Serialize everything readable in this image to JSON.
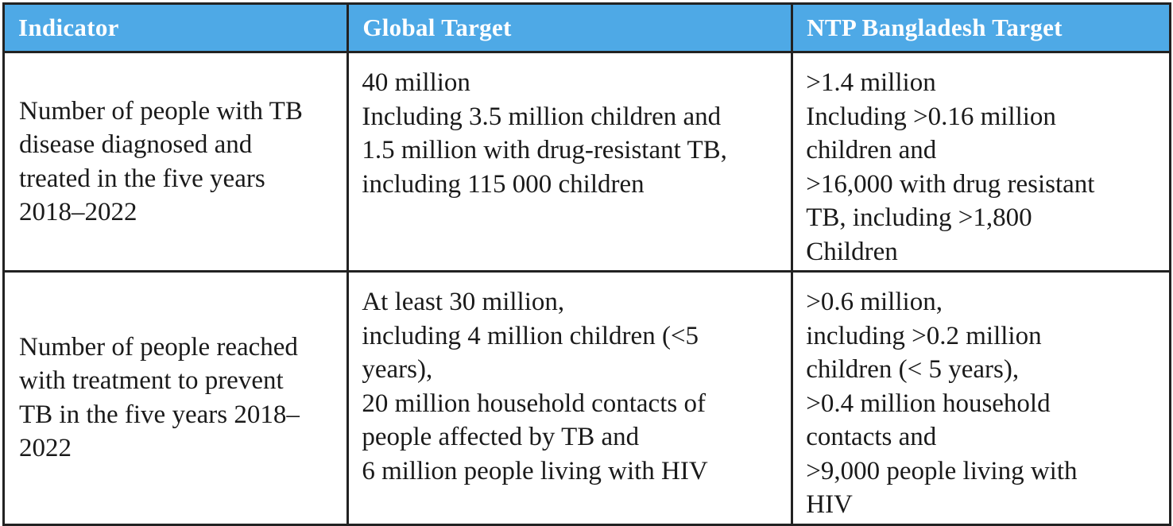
{
  "table": {
    "header_color": "#4EA9E6",
    "headers": [
      "Indicator",
      "Global Target",
      "NTP Bangladesh Target"
    ],
    "rows": [
      {
        "indicator": [
          "Number of people with TB",
          "disease diagnosed and",
          "treated in the five years",
          "2018–2022"
        ],
        "global": [
          "40 million",
          "Including 3.5 million children and",
          "1.5 million with drug-resistant TB,",
          "including 115 000 children"
        ],
        "ntp": [
          ">1.4 million",
          "Including >0.16 million",
          "children and",
          ">16,000 with drug resistant",
          "TB, including >1,800",
          "Children"
        ]
      },
      {
        "indicator": [
          "Number of people reached",
          "with treatment to prevent",
          "TB in the five years 2018–",
          "2022"
        ],
        "global": [
          "At least 30 million,",
          "including 4 million children (<5",
          "years),",
          "20 million household contacts of",
          "people affected by TB and",
          "6 million people living with HIV"
        ],
        "ntp": [
          ">0.6 million,",
          "including >0.2 million",
          "children (< 5 years),",
          ">0.4 million household",
          "contacts and",
          ">9,000 people living with",
          "HIV"
        ]
      }
    ]
  }
}
